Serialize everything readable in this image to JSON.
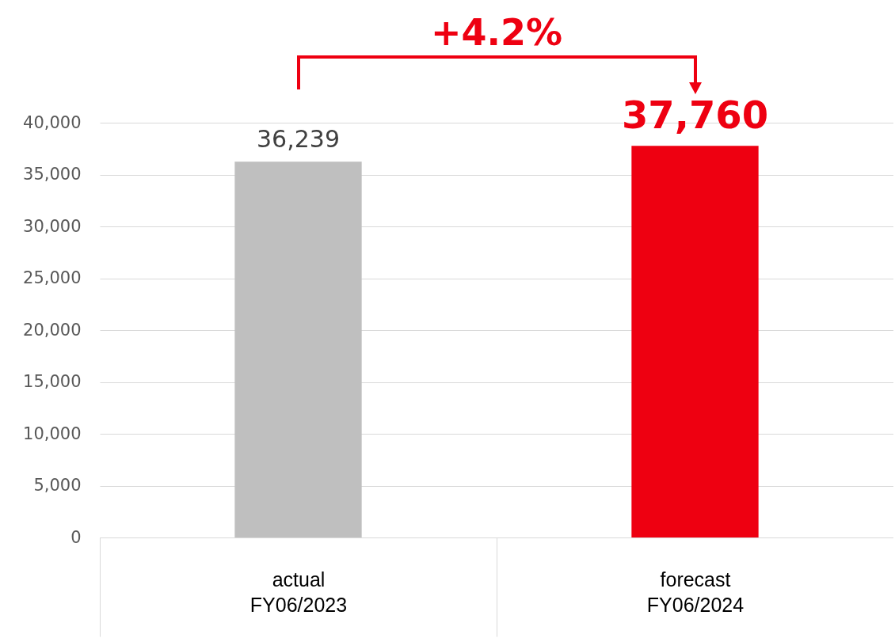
{
  "chart_data": {
    "type": "bar",
    "categories": [
      "actual\nFY06/2023",
      "forecast\nFY06/2024"
    ],
    "values": [
      36239,
      37760
    ],
    "colors": [
      "#bfbfbf",
      "#ee0011"
    ],
    "value_labels": [
      "36,239",
      "37,760"
    ],
    "annotations": [
      "+4.2%"
    ],
    "ylim": [
      0,
      40000
    ],
    "yticks": [
      0,
      {
        "value": 5000,
        "label": "5,000"
      },
      {
        "value": 10000,
        "label": "10,000"
      },
      {
        "value": 15000,
        "label": "15,000"
      },
      {
        "value": 20000,
        "label": "20,000"
      },
      {
        "value": 25000,
        "label": "25,000"
      },
      {
        "value": 30000,
        "label": "30,000"
      },
      {
        "value": 35000,
        "label": "35,000"
      },
      {
        "value": 40000,
        "label": "40,000"
      }
    ],
    "grid": "y",
    "legend": false
  }
}
